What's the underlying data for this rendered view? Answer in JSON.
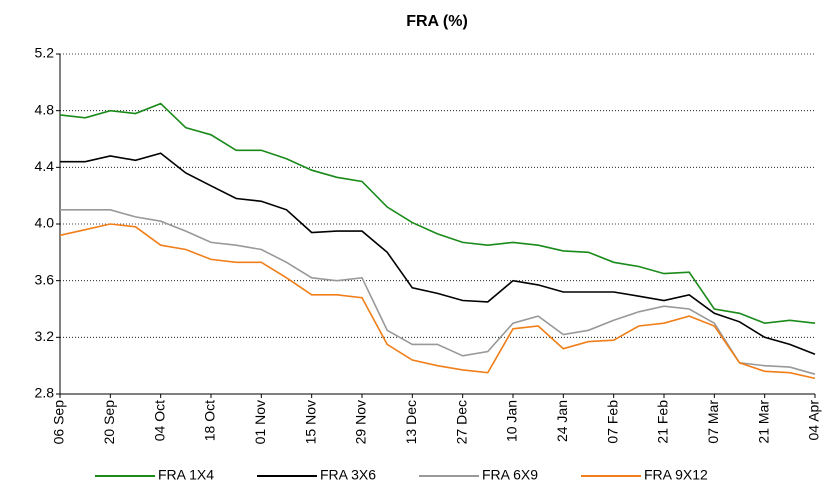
{
  "chart_data": {
    "type": "line",
    "title": "FRA (%)",
    "categories": [
      "06 Sep",
      null,
      "20 Sep",
      null,
      "04 Oct",
      null,
      "18 Oct",
      null,
      "01 Nov",
      null,
      "15 Nov",
      null,
      "29 Nov",
      null,
      "13 Dec",
      null,
      "27 Dec",
      null,
      "10 Jan",
      null,
      "24 Jan",
      null,
      "07 Feb",
      null,
      "21 Feb",
      null,
      "07 Mar",
      null,
      "21 Mar",
      null,
      "04 Apr"
    ],
    "series": [
      {
        "name": "FRA 1X4",
        "color": "#1a8a1a",
        "values": [
          4.77,
          4.75,
          4.8,
          4.78,
          4.85,
          4.68,
          4.63,
          4.52,
          4.52,
          4.46,
          4.38,
          4.33,
          4.3,
          4.12,
          4.01,
          3.93,
          3.87,
          3.85,
          3.87,
          3.85,
          3.81,
          3.8,
          3.73,
          3.7,
          3.65,
          3.66,
          3.4,
          3.37,
          3.3,
          3.32,
          3.3
        ]
      },
      {
        "name": "FRA 3X6",
        "color": "#000000",
        "values": [
          4.44,
          4.44,
          4.48,
          4.45,
          4.5,
          4.36,
          4.27,
          4.18,
          4.16,
          4.1,
          3.94,
          3.95,
          3.95,
          3.8,
          3.55,
          3.51,
          3.46,
          3.45,
          3.6,
          3.57,
          3.52,
          3.52,
          3.52,
          3.49,
          3.46,
          3.5,
          3.37,
          3.31,
          3.2,
          3.15,
          3.08
        ]
      },
      {
        "name": "FRA 6X9",
        "color": "#999999",
        "values": [
          4.1,
          4.1,
          4.1,
          4.05,
          4.02,
          3.95,
          3.87,
          3.85,
          3.82,
          3.73,
          3.62,
          3.6,
          3.62,
          3.25,
          3.15,
          3.15,
          3.07,
          3.1,
          3.3,
          3.35,
          3.22,
          3.25,
          3.32,
          3.38,
          3.42,
          3.4,
          3.3,
          3.02,
          3.0,
          2.99,
          2.94
        ]
      },
      {
        "name": "FRA 9X12",
        "color": "#f07f1a",
        "values": [
          3.92,
          3.96,
          4.0,
          3.98,
          3.85,
          3.82,
          3.75,
          3.73,
          3.73,
          3.62,
          3.5,
          3.5,
          3.48,
          3.15,
          3.04,
          3.0,
          2.97,
          2.95,
          3.26,
          3.28,
          3.12,
          3.17,
          3.18,
          3.28,
          3.3,
          3.35,
          3.28,
          3.02,
          2.96,
          2.95,
          2.91
        ]
      }
    ],
    "ylim": [
      2.8,
      5.2
    ],
    "yticks": [
      2.8,
      3.2,
      3.6,
      {
        "value": 4,
        "label": "4.0"
      },
      4.4,
      4.8,
      5.2
    ],
    "grid": true,
    "legend": "bottom"
  }
}
